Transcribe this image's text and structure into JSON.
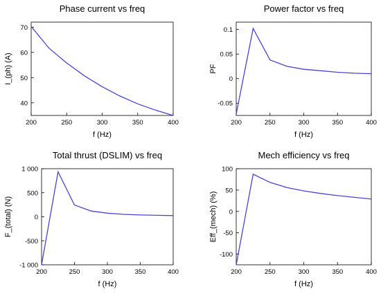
{
  "chart_data": [
    {
      "type": "line",
      "title": "Phase current vs freq",
      "xlabel": "f (Hz)",
      "ylabel": "I_(ph) (A)",
      "x": [
        200,
        225,
        250,
        275,
        300,
        325,
        350,
        375,
        400
      ],
      "series": [
        {
          "values": [
            70.3,
            61.7,
            55.8,
            50.7,
            46.4,
            42.7,
            39.6,
            37.1,
            35.0
          ]
        }
      ],
      "xlim": [
        200,
        400
      ],
      "ylim": [
        35,
        72
      ],
      "xticks": [
        200,
        250,
        300,
        350,
        400
      ],
      "yticks": [
        40,
        50,
        60,
        70
      ],
      "xtick_labels": [
        "200",
        "250",
        "300",
        "350",
        "400"
      ],
      "ytick_labels": [
        "40",
        "50",
        "60",
        "70"
      ],
      "color": "#4444dd"
    },
    {
      "type": "line",
      "title": "Power factor vs freq",
      "xlabel": "f (Hz)",
      "ylabel": "PF",
      "x": [
        200,
        225,
        250,
        275,
        300,
        325,
        350,
        375,
        400
      ],
      "series": [
        {
          "values": [
            -0.072,
            0.102,
            0.038,
            0.025,
            0.019,
            0.016,
            0.013,
            0.011,
            0.01
          ]
        }
      ],
      "xlim": [
        200,
        400
      ],
      "ylim": [
        -0.075,
        0.115
      ],
      "xticks": [
        200,
        250,
        300,
        350,
        400
      ],
      "yticks": [
        -0.05,
        0,
        0.05,
        0.1
      ],
      "xtick_labels": [
        "200",
        "250",
        "300",
        "350",
        "400"
      ],
      "ytick_labels": [
        "-0.05",
        "0",
        "0.05",
        "0.1"
      ],
      "color": "#4444dd"
    },
    {
      "type": "line",
      "title": "Total thrust (DSLIM) vs freq",
      "xlabel": "f (Hz)",
      "ylabel": "F_(total) (N)",
      "x": [
        200,
        225,
        250,
        275,
        300,
        325,
        350,
        375,
        400
      ],
      "series": [
        {
          "values": [
            -1000,
            935,
            245,
            120,
            75,
            50,
            38,
            30,
            25
          ]
        }
      ],
      "xlim": [
        200,
        400
      ],
      "ylim": [
        -1000,
        1000
      ],
      "xticks": [
        200,
        250,
        300,
        350,
        400
      ],
      "yticks": [
        -1000,
        -500,
        0,
        500,
        1000
      ],
      "xtick_labels": [
        "200",
        "250",
        "300",
        "350",
        "400"
      ],
      "ytick_labels": [
        "-1 000",
        "-500",
        "0",
        "500",
        "1 000"
      ],
      "color": "#4444dd"
    },
    {
      "type": "line",
      "title": "Mech efficiency vs freq",
      "xlabel": "f (Hz)",
      "ylabel": "Eff_(mech) (%)",
      "x": [
        200,
        225,
        250,
        275,
        300,
        325,
        350,
        375,
        400
      ],
      "series": [
        {
          "values": [
            -125,
            87,
            68,
            56,
            48,
            42,
            37,
            33,
            29
          ]
        }
      ],
      "xlim": [
        200,
        400
      ],
      "ylim": [
        -125,
        100
      ],
      "xticks": [
        200,
        250,
        300,
        350,
        400
      ],
      "yticks": [
        -100,
        -50,
        0,
        50,
        100
      ],
      "xtick_labels": [
        "200",
        "250",
        "300",
        "350",
        "400"
      ],
      "ytick_labels": [
        "-100",
        "-50",
        "0",
        "50",
        "100"
      ],
      "color": "#4444dd"
    }
  ]
}
